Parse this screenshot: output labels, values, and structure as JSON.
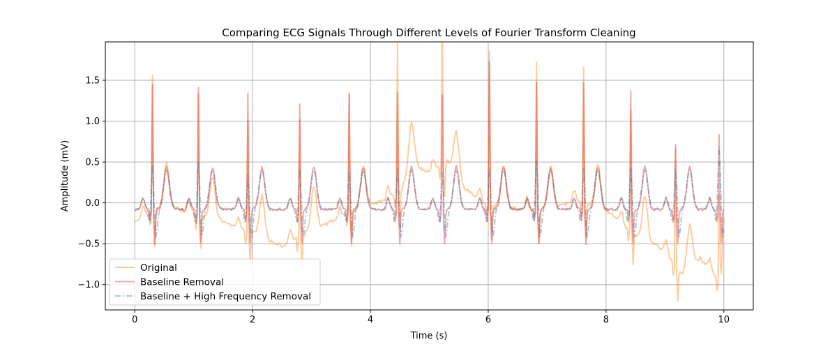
{
  "chart_data": {
    "type": "line",
    "title": "Comparing ECG Signals Through Different Levels of Fourier Transform Cleaning",
    "xlabel": "Time (s)",
    "ylabel": "Amplitude (mV)",
    "xlim": [
      -0.5,
      10.5
    ],
    "ylim": [
      -1.31,
      1.97
    ],
    "xticks": [
      0,
      2,
      4,
      6,
      8,
      10
    ],
    "xtick_labels": [
      "0",
      "2",
      "4",
      "6",
      "8",
      "10"
    ],
    "yticks": [
      -1.0,
      -0.5,
      0.0,
      0.5,
      1.0,
      1.5
    ],
    "ytick_labels": [
      "−1.0",
      "−0.5",
      "0.0",
      "0.5",
      "1.0",
      "1.5"
    ],
    "grid": true,
    "legend_position": "lower-left",
    "sample_rate_hz": 50,
    "beats": [
      {
        "t": 0.3,
        "orig": 1.61,
        "base": 1.47,
        "hf": 0.5
      },
      {
        "t": 1.08,
        "orig": 1.41,
        "base": 1.42,
        "hf": 0.52
      },
      {
        "t": 1.92,
        "orig": 1.33,
        "base": 1.37,
        "hf": 0.38
      },
      {
        "t": 2.8,
        "orig": 1.38,
        "base": 1.23,
        "hf": 0.45
      },
      {
        "t": 3.64,
        "orig": 1.42,
        "base": 1.33,
        "hf": 0.42
      },
      {
        "t": 4.46,
        "orig": 1.82,
        "base": 1.35,
        "hf": 0.45
      },
      {
        "t": 5.22,
        "orig": 1.84,
        "base": 1.34,
        "hf": 0.4
      },
      {
        "t": 6.02,
        "orig": 1.83,
        "base": 1.76,
        "hf": 0.45
      },
      {
        "t": 6.82,
        "orig": 1.72,
        "base": 1.49,
        "hf": 0.55
      },
      {
        "t": 7.62,
        "orig": 1.62,
        "base": 1.49,
        "hf": 0.45
      },
      {
        "t": 8.42,
        "orig": 1.41,
        "base": 1.4,
        "hf": 0.45
      },
      {
        "t": 9.18,
        "orig": 1.36,
        "base": 0.72,
        "hf": 0.45
      },
      {
        "t": 9.92,
        "orig": 0.8,
        "base": 0.84,
        "hf": 0.72
      }
    ],
    "baseline_wander": {
      "t": [
        0.0,
        0.5,
        1.0,
        1.5,
        2.0,
        2.5,
        3.0,
        3.5,
        4.0,
        4.5,
        4.7,
        5.0,
        5.3,
        5.6,
        6.0,
        6.5,
        7.0,
        7.5,
        8.0,
        8.5,
        9.0,
        9.3,
        9.6,
        9.9,
        10.0
      ],
      "offset": [
        -0.15,
        0.05,
        -0.05,
        -0.15,
        -0.3,
        -0.45,
        -0.25,
        -0.1,
        0.05,
        0.2,
        0.55,
        0.45,
        0.6,
        0.25,
        0.05,
        0.0,
        0.0,
        0.1,
        0.0,
        -0.3,
        -0.5,
        -0.8,
        -0.6,
        -0.85,
        -0.1
      ]
    },
    "series": [
      {
        "name": "Original",
        "color": "#ff7f0e",
        "opacity": 0.35,
        "dash": "solid"
      },
      {
        "name": "Baseline Removal",
        "color": "#d62728",
        "opacity": 0.35,
        "dash": "solid"
      },
      {
        "name": "Baseline + High Frequency Removal",
        "color": "#1f77b4",
        "opacity": 0.35,
        "dash": "dashdot"
      }
    ]
  }
}
